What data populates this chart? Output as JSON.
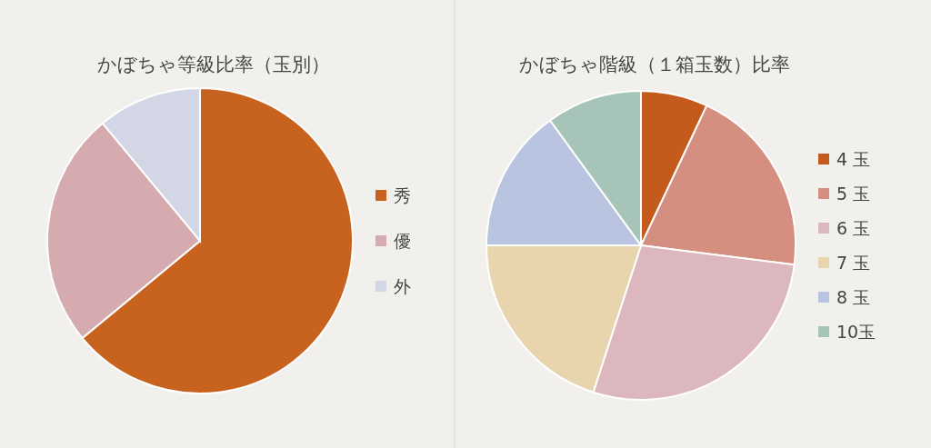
{
  "chart_data": [
    {
      "type": "pie",
      "title": "かぼちゃ等級比率（玉別）",
      "categories": [
        "秀",
        "優",
        "外"
      ],
      "values": [
        64,
        25,
        11
      ],
      "colors": [
        "#c8621f",
        "#d6abb0",
        "#d3d7e5"
      ],
      "legend": "right"
    },
    {
      "type": "pie",
      "title": "かぼちゃ階級（１箱玉数）比率",
      "categories": [
        "4 玉",
        "5 玉",
        "6 玉",
        "7 玉",
        "8 玉",
        "10玉"
      ],
      "values": [
        7,
        20,
        28,
        20,
        15,
        10
      ],
      "colors": [
        "#c45a1c",
        "#d48f80",
        "#dcb7bd",
        "#e8d4ad",
        "#b9c4e0",
        "#a7c4b8"
      ],
      "legend": "right"
    }
  ]
}
